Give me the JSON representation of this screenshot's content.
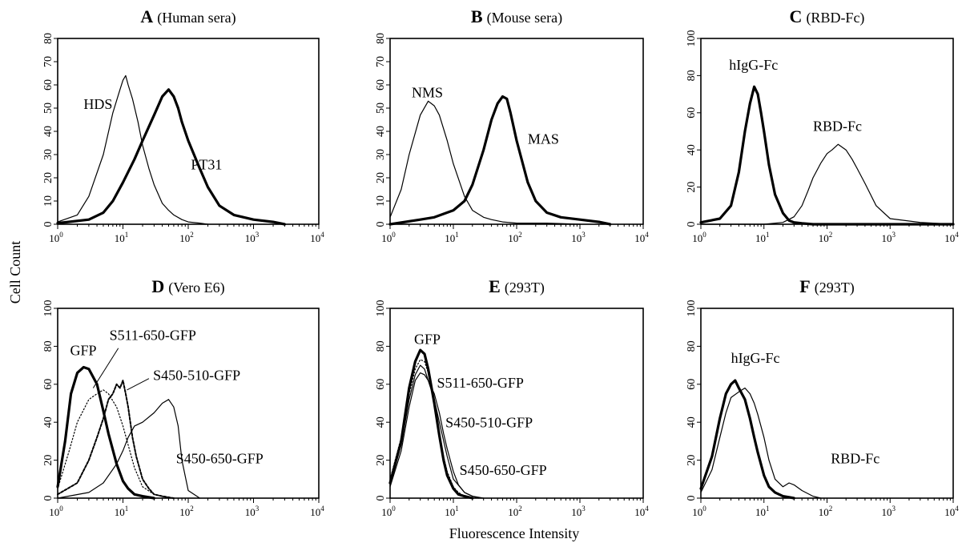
{
  "figure": {
    "ylabel": "Cell Count",
    "xlabel": "Fluorescence Intensity",
    "x_tick_base": "10",
    "x_tick_exponents": [
      "0",
      "1",
      "2",
      "3",
      "4"
    ]
  },
  "chart_data": [
    {
      "type": "line",
      "panel": "A",
      "subtitle": "(Human sera)",
      "xscale": "log",
      "xlim": [
        1,
        10000
      ],
      "ylim": [
        0,
        80
      ],
      "yticks": [
        "0",
        "10",
        "20",
        "30",
        "40",
        "50",
        "60",
        "70",
        "80"
      ],
      "series": [
        {
          "name": "HDS",
          "style": "thin",
          "x": [
            1,
            2,
            3,
            5,
            7,
            9,
            10,
            11,
            12,
            14,
            17,
            20,
            25,
            30,
            40,
            50,
            60,
            80,
            100,
            150,
            200
          ],
          "y": [
            1,
            4,
            12,
            30,
            48,
            58,
            62,
            64,
            60,
            54,
            44,
            34,
            24,
            17,
            9,
            6,
            4,
            2,
            1,
            0.5,
            0
          ]
        },
        {
          "name": "PT31",
          "style": "thick",
          "x": [
            1,
            3,
            5,
            7,
            10,
            15,
            20,
            30,
            40,
            50,
            60,
            70,
            80,
            100,
            150,
            200,
            300,
            500,
            1000,
            2000,
            3000
          ],
          "y": [
            0.5,
            2,
            5,
            10,
            18,
            28,
            36,
            47,
            55,
            58,
            55,
            50,
            44,
            36,
            24,
            16,
            8,
            4,
            2,
            1,
            0
          ]
        }
      ],
      "annotations": [
        {
          "text": "HDS",
          "x": 2.5,
          "y": 51
        },
        {
          "text": "PT31",
          "x": 110,
          "y": 25
        }
      ]
    },
    {
      "type": "line",
      "panel": "B",
      "subtitle": "(Mouse sera)",
      "xscale": "log",
      "xlim": [
        1,
        10000
      ],
      "ylim": [
        0,
        80
      ],
      "yticks": [
        "0",
        "10",
        "20",
        "30",
        "40",
        "50",
        "60",
        "70",
        "80"
      ],
      "series": [
        {
          "name": "NMS",
          "style": "thin",
          "x": [
            1,
            1.5,
            2,
            3,
            4,
            5,
            6,
            8,
            10,
            15,
            20,
            30,
            40,
            60,
            100,
            300,
            1000
          ],
          "y": [
            3,
            15,
            30,
            47,
            53,
            51,
            47,
            36,
            26,
            12,
            6,
            3,
            2,
            1,
            0.5,
            0.5,
            0
          ]
        },
        {
          "name": "MAS",
          "style": "thick",
          "x": [
            1,
            3,
            5,
            10,
            15,
            20,
            30,
            40,
            50,
            60,
            70,
            80,
            100,
            150,
            200,
            300,
            500,
            1000,
            2000,
            3000
          ],
          "y": [
            0,
            2,
            3,
            6,
            10,
            17,
            32,
            45,
            52,
            55,
            54,
            48,
            36,
            18,
            10,
            5,
            3,
            2,
            1,
            0
          ]
        }
      ],
      "annotations": [
        {
          "text": "NMS",
          "x": 2.2,
          "y": 56
        },
        {
          "text": "MAS",
          "x": 150,
          "y": 36
        }
      ]
    },
    {
      "type": "line",
      "panel": "C",
      "subtitle": "(RBD-Fc)",
      "xscale": "log",
      "xlim": [
        1,
        10000
      ],
      "ylim": [
        0,
        100
      ],
      "yticks": [
        "0",
        "20",
        "40",
        "60",
        "80",
        "100"
      ],
      "series": [
        {
          "name": "hIgG-Fc",
          "style": "thick",
          "x": [
            1,
            2,
            3,
            4,
            5,
            6,
            7,
            8,
            9,
            10,
            12,
            15,
            20,
            25,
            30,
            40,
            60,
            100,
            1000,
            10000
          ],
          "y": [
            1,
            3,
            10,
            28,
            50,
            65,
            74,
            70,
            60,
            50,
            32,
            16,
            6,
            2,
            1,
            0.5,
            0,
            0,
            0,
            0
          ]
        },
        {
          "name": "RBD-Fc",
          "style": "thin",
          "x": [
            1,
            10,
            20,
            30,
            40,
            50,
            60,
            80,
            100,
            120,
            150,
            200,
            250,
            300,
            400,
            600,
            1000,
            3000,
            10000
          ],
          "y": [
            0,
            0,
            1,
            4,
            10,
            18,
            25,
            33,
            38,
            40,
            43,
            40,
            35,
            30,
            22,
            10,
            3,
            1,
            0
          ]
        }
      ],
      "annotations": [
        {
          "text": "hIgG-Fc",
          "x": 2.8,
          "y": 85
        },
        {
          "text": "RBD-Fc",
          "x": 60,
          "y": 52
        }
      ]
    },
    {
      "type": "line",
      "panel": "D",
      "subtitle": "(Vero E6)",
      "xscale": "log",
      "xlim": [
        1,
        10000
      ],
      "ylim": [
        0,
        100
      ],
      "yticks": [
        "0",
        "20",
        "40",
        "60",
        "80",
        "100"
      ],
      "series": [
        {
          "name": "GFP",
          "style": "thick",
          "x": [
            1,
            1.3,
            1.6,
            2,
            2.5,
            3,
            4,
            5,
            6,
            8,
            10,
            12,
            15,
            20,
            30
          ],
          "y": [
            6,
            30,
            55,
            66,
            69,
            68,
            60,
            46,
            34,
            18,
            9,
            5,
            2,
            1,
            0
          ]
        },
        {
          "name": "S511-650-GFP",
          "style": "dotted",
          "x": [
            1,
            1.5,
            2,
            3,
            4,
            5,
            6,
            8,
            10,
            12,
            15,
            20,
            30,
            50
          ],
          "y": [
            5,
            25,
            40,
            52,
            55,
            57,
            55,
            48,
            38,
            28,
            16,
            6,
            2,
            0
          ]
        },
        {
          "name": "S450-510-GFP",
          "style": "dashed",
          "x": [
            1,
            2,
            3,
            4,
            5,
            6,
            7,
            8,
            9,
            10,
            11,
            12,
            14,
            16,
            20,
            25,
            30,
            40,
            60
          ],
          "y": [
            2,
            8,
            20,
            32,
            42,
            52,
            55,
            60,
            58,
            62,
            55,
            48,
            32,
            22,
            10,
            5,
            2,
            1,
            0
          ]
        },
        {
          "name": "S450-650-GFP",
          "style": "thin",
          "x": [
            1,
            3,
            5,
            8,
            10,
            12,
            15,
            20,
            30,
            40,
            50,
            60,
            70,
            80,
            100,
            150
          ],
          "y": [
            0,
            3,
            8,
            18,
            25,
            32,
            38,
            40,
            45,
            50,
            52,
            48,
            38,
            20,
            4,
            0
          ]
        }
      ],
      "annotations": [
        {
          "text": "GFP",
          "x": 1.55,
          "y": 77
        },
        {
          "text": "S511-650-GFP",
          "x": 6.2,
          "y": 85
        },
        {
          "text": "S450-510-GFP",
          "x": 29,
          "y": 64
        },
        {
          "text": "S450-650-GFP",
          "x": 65,
          "y": 20
        }
      ],
      "leaders": [
        {
          "from": [
            8.5,
            79
          ],
          "to": [
            3.5,
            58
          ]
        },
        {
          "from": [
            25,
            63
          ],
          "to": [
            11.5,
            57
          ]
        }
      ]
    },
    {
      "type": "line",
      "panel": "E",
      "subtitle": "(293T)",
      "xscale": "log",
      "xlim": [
        1,
        10000
      ],
      "ylim": [
        0,
        100
      ],
      "yticks": [
        "0",
        "20",
        "40",
        "60",
        "80",
        "100"
      ],
      "series": [
        {
          "name": "GFP",
          "style": "thick",
          "x": [
            1,
            1.5,
            2,
            2.5,
            3,
            3.5,
            4,
            5,
            6,
            7,
            8,
            10,
            12,
            15,
            20
          ],
          "y": [
            8,
            30,
            58,
            72,
            78,
            76,
            68,
            50,
            33,
            20,
            12,
            5,
            2,
            1,
            0
          ]
        },
        {
          "name": "S511-650-GFP",
          "style": "dotted",
          "x": [
            1,
            1.5,
            2,
            2.5,
            3,
            3.5,
            4,
            5,
            6,
            7,
            8,
            10,
            12,
            15,
            20
          ],
          "y": [
            10,
            32,
            55,
            68,
            73,
            72,
            66,
            50,
            35,
            22,
            14,
            6,
            3,
            1,
            0
          ]
        },
        {
          "name": "S450-510-GFP",
          "style": "thin",
          "x": [
            1,
            1.5,
            2,
            2.5,
            3,
            3.5,
            4,
            5,
            6,
            7,
            8,
            10,
            12,
            15,
            20,
            25
          ],
          "y": [
            6,
            25,
            48,
            62,
            66,
            65,
            62,
            55,
            45,
            34,
            26,
            14,
            7,
            3,
            1,
            0
          ]
        },
        {
          "name": "S450-650-GFP",
          "style": "thin",
          "x": [
            1,
            1.5,
            2,
            2.5,
            3,
            3.5,
            4,
            5,
            6,
            8,
            10,
            15,
            20,
            30
          ],
          "y": [
            8,
            28,
            52,
            65,
            70,
            68,
            62,
            52,
            40,
            22,
            10,
            3,
            1,
            0
          ]
        }
      ],
      "annotations": [
        {
          "text": "GFP",
          "x": 2.4,
          "y": 83
        },
        {
          "text": "S511-650-GFP",
          "x": 5.5,
          "y": 60
        },
        {
          "text": "S450-510-GFP",
          "x": 7.5,
          "y": 39
        },
        {
          "text": "S450-650-GFP",
          "x": 12.5,
          "y": 14
        }
      ]
    },
    {
      "type": "line",
      "panel": "F",
      "subtitle": "(293T)",
      "xscale": "log",
      "xlim": [
        1,
        10000
      ],
      "ylim": [
        0,
        100
      ],
      "yticks": [
        "0",
        "20",
        "40",
        "60",
        "80",
        "100"
      ],
      "series": [
        {
          "name": "hIgG-Fc",
          "style": "thick",
          "x": [
            1,
            1.5,
            2,
            2.5,
            3,
            3.5,
            4,
            5,
            6,
            7,
            8,
            10,
            12,
            15,
            20,
            25,
            30
          ],
          "y": [
            5,
            22,
            42,
            55,
            60,
            62,
            58,
            52,
            42,
            32,
            24,
            12,
            6,
            3,
            1,
            0.5,
            0
          ]
        },
        {
          "name": "RBD-Fc",
          "style": "thin",
          "x": [
            1,
            1.5,
            2,
            2.5,
            3,
            4,
            5,
            6,
            7,
            8,
            10,
            12,
            15,
            20,
            25,
            30,
            40,
            60,
            80
          ],
          "y": [
            3,
            15,
            32,
            45,
            53,
            56,
            58,
            55,
            50,
            44,
            32,
            20,
            10,
            6,
            8,
            7,
            4,
            1,
            0
          ]
        }
      ],
      "annotations": [
        {
          "text": "hIgG-Fc",
          "x": 3,
          "y": 73
        },
        {
          "text": "RBD-Fc",
          "x": 115,
          "y": 20
        }
      ]
    }
  ]
}
